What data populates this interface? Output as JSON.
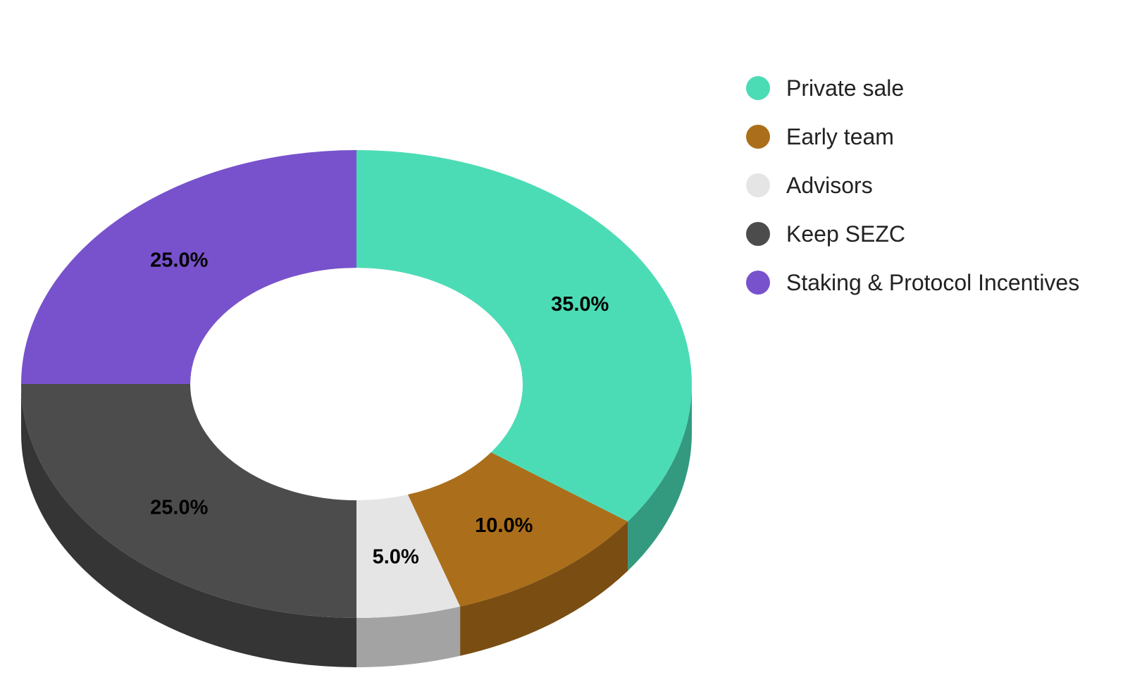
{
  "chart_data": {
    "type": "pie",
    "subtype": "donut-3d",
    "categories": [
      "Private sale",
      "Early team",
      "Advisors",
      "Keep SEZC",
      "Staking & Protocol Incentives"
    ],
    "values": [
      35.0,
      10.0,
      5.0,
      25.0,
      25.0
    ],
    "value_labels": [
      "35.0%",
      "10.0%",
      "5.0%",
      "25.0%",
      "25.0%"
    ],
    "colors": [
      "#4cdcb5",
      "#ab6e1a",
      "#e5e5e5",
      "#4c4c4c",
      "#7852cc"
    ],
    "side_colors": [
      "#339a80",
      "#7a4d12",
      "#a3a3a3",
      "#353535",
      "#533889"
    ],
    "start": "top, clockwise",
    "legend_position": "right",
    "title": ""
  }
}
